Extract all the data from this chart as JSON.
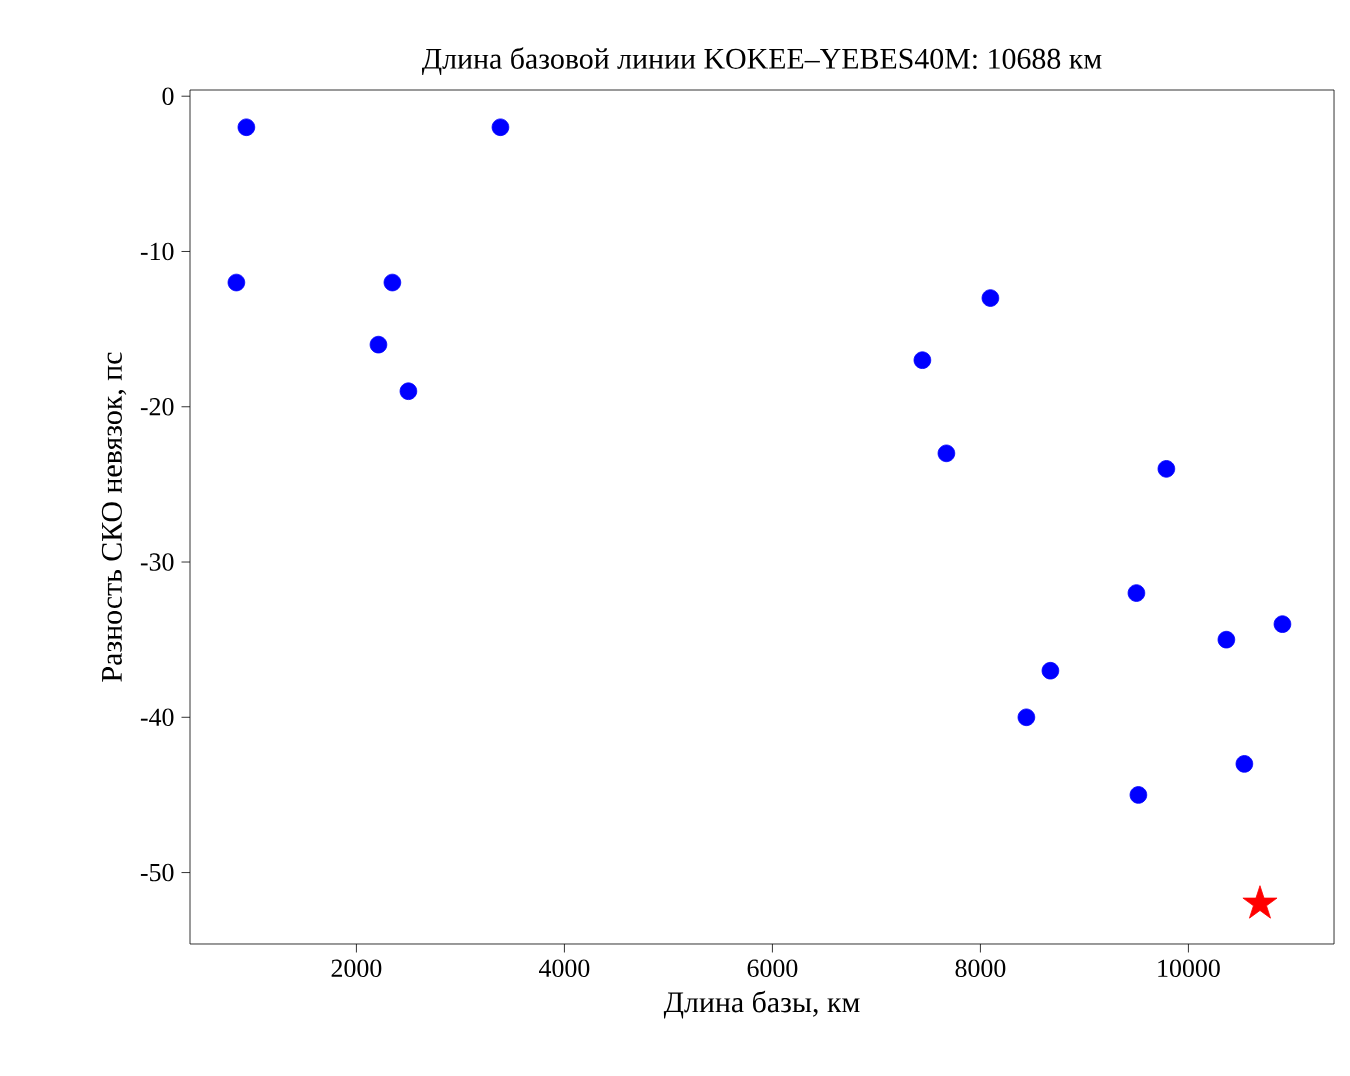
{
  "chart_data": {
    "type": "scatter",
    "title": "Длина базовой линии KOKEE–YEBES40M: 10688 км",
    "xlabel": "Длина базы, км",
    "ylabel": "Разность СКО невязок, пс",
    "series": [
      {
        "color": "#0000ff",
        "marker": "circle",
        "x": [
          942,
          846,
          3385,
          2346,
          2212,
          2500,
          7442,
          8096,
          7673,
          9788,
          9500,
          10365,
          10904,
          8673,
          8442,
          9519,
          10538
        ],
        "values": [
          -2,
          -12,
          -2,
          -12,
          -16,
          -19,
          -17,
          -13,
          -23,
          -24,
          -32,
          -35,
          -34,
          -37,
          -40,
          -45,
          -43
        ]
      },
      {
        "color": "#ff0000",
        "marker": "star",
        "x": [
          10688
        ],
        "values": [
          -52
        ]
      }
    ],
    "xlim": [
      400,
      11400
    ],
    "ylim": [
      -54.6,
      0.4
    ],
    "xticks": [
      2000,
      4000,
      6000,
      8000,
      10000
    ],
    "yticks": [
      0,
      -10,
      -20,
      -30,
      -40,
      -50
    ]
  }
}
